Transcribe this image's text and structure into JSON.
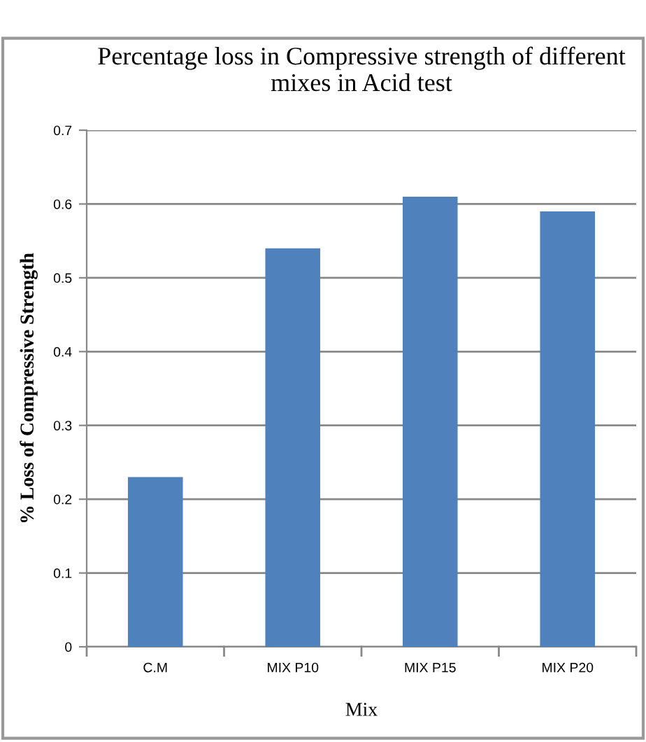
{
  "chart_data": {
    "type": "bar",
    "title": "Percentage loss in Compressive strength of different mixes in Acid test",
    "xlabel": "Mix",
    "ylabel": "% Loss of Compressive Strength",
    "categories": [
      "C.M",
      "MIX P10",
      "MIX P15",
      "MIX P20"
    ],
    "values": [
      0.23,
      0.54,
      0.61,
      0.59
    ],
    "color": "#4f81bd",
    "ylim": [
      0,
      0.7
    ],
    "yticks": [
      {
        "value": 0,
        "label": "0"
      },
      0.1,
      0.2,
      0.3,
      0.4,
      0.5,
      0.6,
      0.7
    ],
    "grid": "y",
    "legend": false
  }
}
